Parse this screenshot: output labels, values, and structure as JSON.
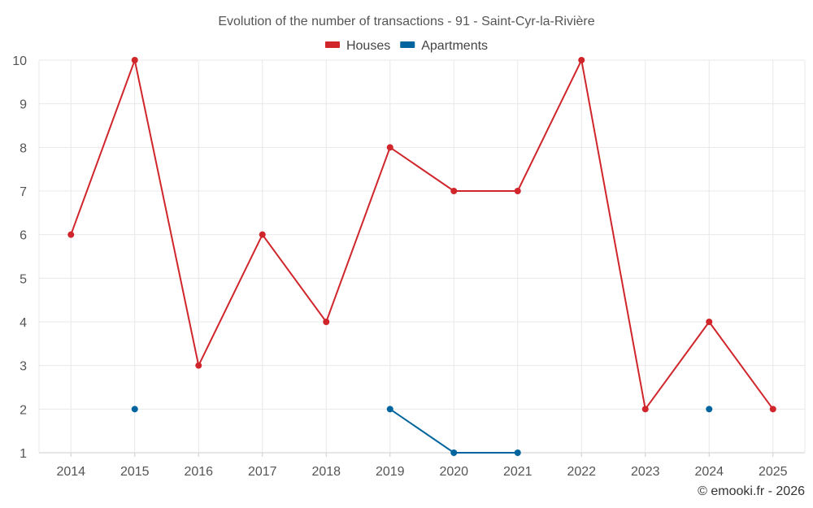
{
  "chart_data": {
    "type": "line",
    "title": "Evolution of the number of transactions - 91 - Saint-Cyr-la-Rivière",
    "xlabel": "",
    "ylabel": "",
    "x": [
      "2014",
      "2015",
      "2016",
      "2017",
      "2018",
      "2019",
      "2020",
      "2021",
      "2022",
      "2023",
      "2024",
      "2025"
    ],
    "yticks": [
      1,
      2,
      3,
      4,
      5,
      6,
      7,
      8,
      9,
      10
    ],
    "ylim": [
      1,
      10
    ],
    "grid": true,
    "legend": "top-center",
    "series": [
      {
        "name": "Houses",
        "color": "#d0262b",
        "values": [
          6,
          10,
          3,
          6,
          4,
          8,
          7,
          7,
          10,
          2,
          4,
          2
        ]
      },
      {
        "name": "Apartments",
        "color": "#00659e",
        "values": [
          null,
          2,
          null,
          null,
          null,
          2,
          1,
          1,
          null,
          null,
          2,
          null
        ]
      }
    ]
  },
  "credit": "© emooki.fr - 2026"
}
